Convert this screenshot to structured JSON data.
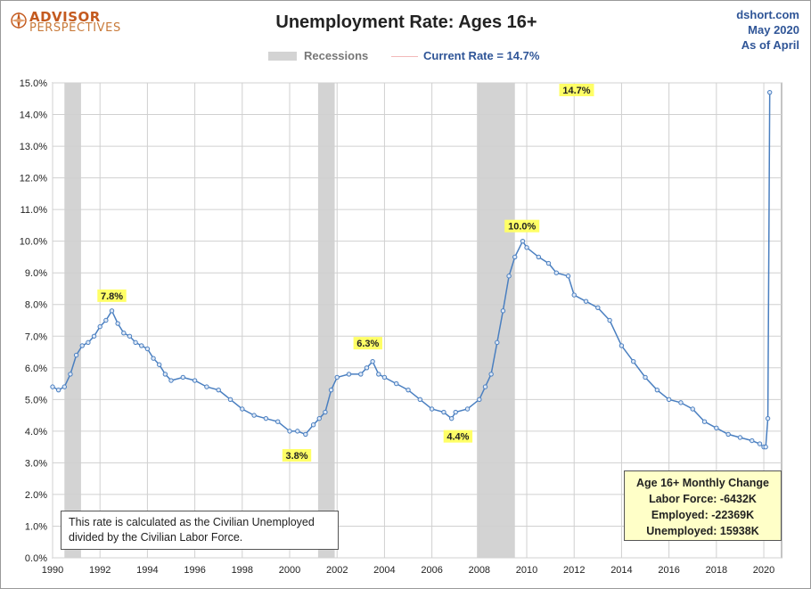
{
  "header": {
    "logo_line1": "ADVISOR",
    "logo_line2": "PERSPECTIVES",
    "credit_line1": "dshort.com",
    "credit_line2": "May 2020",
    "credit_line3": "As of April"
  },
  "legend": {
    "recessions_label": "Recessions",
    "current_rate_label": "Current Rate = 14.7%"
  },
  "note_text": "This rate is calculated as the Civilian Unemployed divided by the Civilian Labor Force.",
  "monthly_change": {
    "title": "Age 16+ Monthly Change",
    "labor_force": "Labor Force:  -6432K",
    "employed": "Employed:  -22369K",
    "unemployed": "Unemployed:  15938K"
  },
  "colors": {
    "line": "#4a7fc0",
    "marker_fill": "#dfe9f7",
    "recession_band": "#d3d3d3",
    "callout_bg": "#ffff66",
    "grid": "#d0d0d0"
  },
  "chart_data": {
    "type": "line",
    "title": "Unemployment Rate: Ages 16+",
    "xlabel": "",
    "ylabel": "",
    "xlim": [
      1990,
      2020.75
    ],
    "ylim": [
      0,
      15
    ],
    "grid": true,
    "legend_position": "top",
    "y_ticks": [
      "0.0%",
      "1.0%",
      "2.0%",
      "3.0%",
      "4.0%",
      "5.0%",
      "6.0%",
      "7.0%",
      "8.0%",
      "9.0%",
      "10.0%",
      "11.0%",
      "12.0%",
      "13.0%",
      "14.0%",
      "15.0%"
    ],
    "x_ticks": [
      "1990",
      "1992",
      "1994",
      "1996",
      "1998",
      "2000",
      "2002",
      "2004",
      "2006",
      "2008",
      "2010",
      "2012",
      "2014",
      "2016",
      "2018",
      "2020"
    ],
    "recessions": [
      [
        1990.5,
        1991.2
      ],
      [
        2001.2,
        2001.9
      ],
      [
        2007.9,
        2009.5
      ]
    ],
    "series": [
      {
        "name": "Unemployment Rate",
        "x": [
          1990.0,
          1990.25,
          1990.5,
          1990.75,
          1991.0,
          1991.25,
          1991.5,
          1991.75,
          1992.0,
          1992.25,
          1992.5,
          1992.75,
          1993.0,
          1993.25,
          1993.5,
          1993.75,
          1994.0,
          1994.25,
          1994.5,
          1994.75,
          1995.0,
          1995.5,
          1996.0,
          1996.5,
          1997.0,
          1997.5,
          1998.0,
          1998.5,
          1999.0,
          1999.5,
          2000.0,
          2000.33,
          2000.67,
          2001.0,
          2001.25,
          2001.5,
          2001.75,
          2002.0,
          2002.5,
          2003.0,
          2003.25,
          2003.5,
          2003.75,
          2004.0,
          2004.5,
          2005.0,
          2005.5,
          2006.0,
          2006.5,
          2006.83,
          2007.0,
          2007.5,
          2008.0,
          2008.25,
          2008.5,
          2008.75,
          2009.0,
          2009.25,
          2009.5,
          2009.83,
          2010.0,
          2010.5,
          2010.92,
          2011.25,
          2011.75,
          2012.0,
          2012.5,
          2013.0,
          2013.5,
          2014.0,
          2014.5,
          2015.0,
          2015.5,
          2016.0,
          2016.5,
          2017.0,
          2017.5,
          2018.0,
          2018.5,
          2019.0,
          2019.5,
          2019.83,
          2020.0,
          2020.08,
          2020.17,
          2020.25
        ],
        "values": [
          5.4,
          5.3,
          5.4,
          5.8,
          6.4,
          6.7,
          6.8,
          7.0,
          7.3,
          7.5,
          7.8,
          7.4,
          7.1,
          7.0,
          6.8,
          6.7,
          6.6,
          6.3,
          6.1,
          5.8,
          5.6,
          5.7,
          5.6,
          5.4,
          5.3,
          5.0,
          4.7,
          4.5,
          4.4,
          4.3,
          4.0,
          4.0,
          3.9,
          4.2,
          4.4,
          4.6,
          5.3,
          5.7,
          5.8,
          5.8,
          6.0,
          6.2,
          5.8,
          5.7,
          5.5,
          5.3,
          5.0,
          4.7,
          4.6,
          4.4,
          4.6,
          4.7,
          5.0,
          5.4,
          5.8,
          6.8,
          7.8,
          8.9,
          9.5,
          10.0,
          9.8,
          9.5,
          9.3,
          9.0,
          8.9,
          8.3,
          8.1,
          7.9,
          7.5,
          6.7,
          6.2,
          5.7,
          5.3,
          5.0,
          4.9,
          4.7,
          4.3,
          4.1,
          3.9,
          3.8,
          3.7,
          3.6,
          3.5,
          3.5,
          4.4,
          14.7
        ]
      }
    ],
    "annotations": [
      {
        "text": "7.8%",
        "x": 1992.5,
        "y": 7.8
      },
      {
        "text": "3.8%",
        "x": 2000.3,
        "y": 3.8
      },
      {
        "text": "6.3%",
        "x": 2003.3,
        "y": 6.3
      },
      {
        "text": "4.4%",
        "x": 2007.1,
        "y": 4.4
      },
      {
        "text": "10.0%",
        "x": 2009.8,
        "y": 10.0
      },
      {
        "text": "14.7%",
        "x": 2020.25,
        "y": 14.7
      }
    ]
  }
}
